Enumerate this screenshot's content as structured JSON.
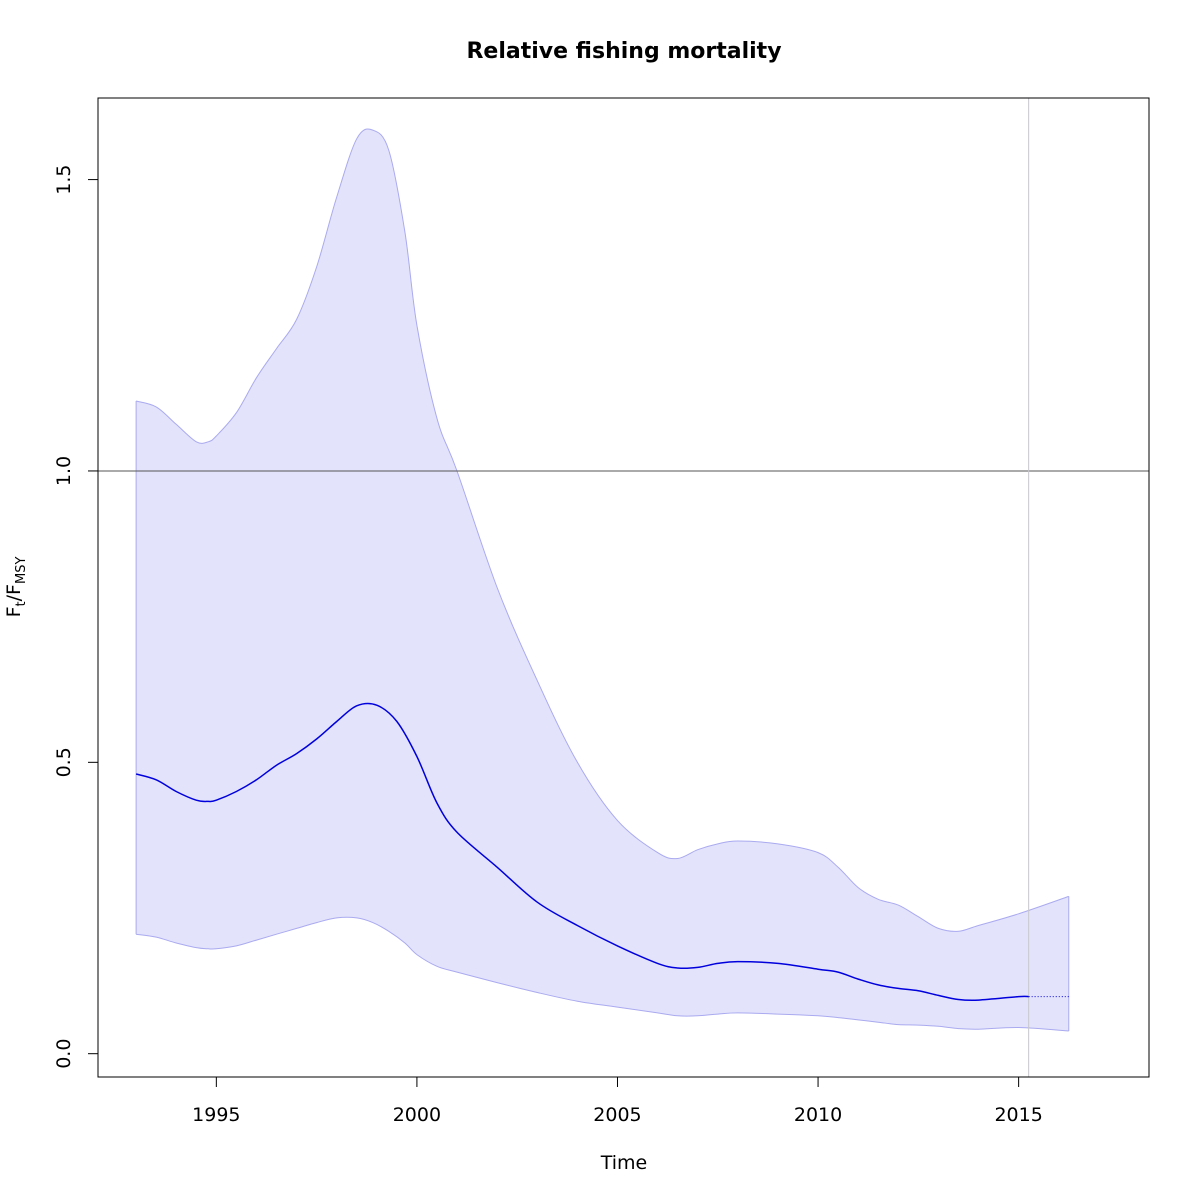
{
  "chart_data": {
    "type": "line",
    "title": "Relative fishing mortality",
    "xlabel": "Time",
    "ylabel": {
      "main": "F",
      "sub1": "t",
      "sep": "/F",
      "sub2": "MSY"
    },
    "xlim": [
      1992.05,
      2018.25
    ],
    "ylim": [
      -0.04,
      1.64
    ],
    "x_ticks": [
      1995,
      2000,
      2005,
      2010,
      2015
    ],
    "x_tick_labels": [
      "1995",
      "2000",
      "2005",
      "2010",
      "2015"
    ],
    "y_ticks": [
      0.0,
      0.5,
      1.0,
      1.5
    ],
    "y_tick_labels": [
      "0.0",
      "0.5",
      "1.0",
      "1.5"
    ],
    "reference_line_y": 1.0,
    "last_observation_x": 2015.25,
    "grid": false,
    "colors": {
      "band_fill": "#e3e3fb",
      "band_edge": "#aaaaf0",
      "median": "#0000dd",
      "reference": "#555555",
      "vertical": "#c8c8cc"
    },
    "series": [
      {
        "role": "median",
        "style": "solid",
        "x": [
          1993.0,
          1993.5,
          1994.0,
          1994.5,
          1994.8,
          1995.0,
          1995.5,
          1996.0,
          1996.5,
          1997.0,
          1997.5,
          1998.0,
          1998.5,
          1999.0,
          1999.5,
          2000.0,
          2000.5,
          2001.0,
          2002.0,
          2003.0,
          2004.0,
          2005.0,
          2006.0,
          2006.5,
          2007.0,
          2007.5,
          2008.0,
          2009.0,
          2010.0,
          2010.5,
          2011.0,
          2011.5,
          2012.0,
          2012.5,
          2013.0,
          2013.5,
          2014.0,
          2015.0,
          2015.25
        ],
        "y": [
          0.48,
          0.47,
          0.45,
          0.435,
          0.433,
          0.435,
          0.45,
          0.47,
          0.495,
          0.515,
          0.54,
          0.57,
          0.597,
          0.598,
          0.57,
          0.51,
          0.43,
          0.38,
          0.32,
          0.26,
          0.22,
          0.185,
          0.155,
          0.147,
          0.148,
          0.155,
          0.158,
          0.155,
          0.145,
          0.14,
          0.128,
          0.118,
          0.112,
          0.108,
          0.1,
          0.093,
          0.092,
          0.098,
          0.098
        ]
      },
      {
        "role": "projection",
        "style": "dotted",
        "x": [
          2015.25,
          2016.25
        ],
        "y": [
          0.098,
          0.098
        ]
      }
    ],
    "band": {
      "x": [
        1993.0,
        1993.5,
        1994.0,
        1994.5,
        1994.8,
        1995.0,
        1995.5,
        1996.0,
        1996.5,
        1997.0,
        1997.5,
        1998.0,
        1998.5,
        1998.9,
        1999.3,
        1999.7,
        2000.0,
        2000.5,
        2001.0,
        2002.0,
        2003.0,
        2004.0,
        2005.0,
        2006.0,
        2006.5,
        2007.0,
        2007.5,
        2008.0,
        2009.0,
        2010.0,
        2010.5,
        2011.0,
        2011.5,
        2012.0,
        2012.5,
        2013.0,
        2013.5,
        2014.0,
        2015.0,
        2016.25
      ],
      "upper": [
        1.12,
        1.11,
        1.08,
        1.05,
        1.05,
        1.06,
        1.1,
        1.16,
        1.21,
        1.26,
        1.35,
        1.47,
        1.57,
        1.585,
        1.55,
        1.41,
        1.25,
        1.09,
        1.0,
        0.8,
        0.64,
        0.5,
        0.4,
        0.345,
        0.335,
        0.35,
        0.36,
        0.365,
        0.36,
        0.345,
        0.32,
        0.285,
        0.265,
        0.255,
        0.235,
        0.215,
        0.21,
        0.22,
        0.24,
        0.27
      ],
      "lower": [
        0.205,
        0.2,
        0.19,
        0.182,
        0.18,
        0.18,
        0.185,
        0.195,
        0.205,
        0.215,
        0.225,
        0.233,
        0.233,
        0.225,
        0.21,
        0.19,
        0.17,
        0.15,
        0.14,
        0.122,
        0.105,
        0.09,
        0.08,
        0.07,
        0.065,
        0.065,
        0.068,
        0.07,
        0.068,
        0.065,
        0.062,
        0.058,
        0.054,
        0.05,
        0.049,
        0.047,
        0.043,
        0.042,
        0.045,
        0.039
      ]
    }
  }
}
